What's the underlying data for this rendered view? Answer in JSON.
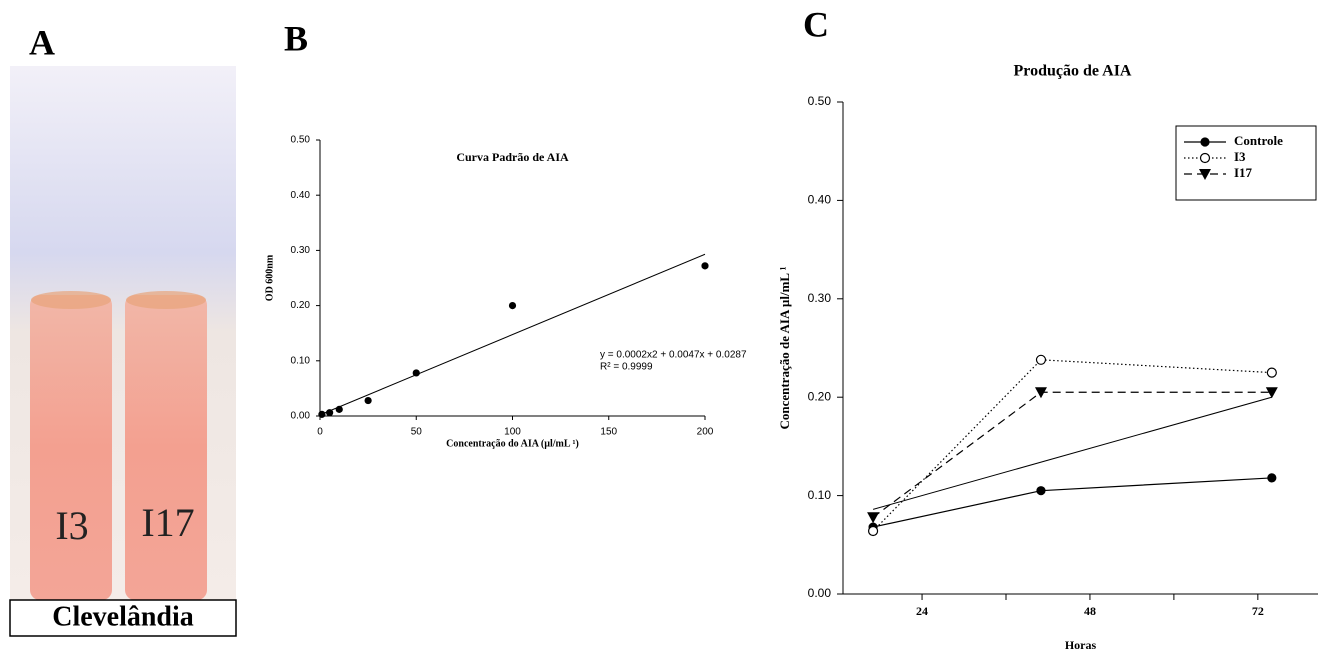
{
  "panel_labels": [
    "A",
    "B",
    "C"
  ],
  "photo": {
    "tube_labels": [
      "I3",
      "I17"
    ],
    "caption": "Clevelândia"
  },
  "chart_data": [
    {
      "type": "scatter",
      "title": "Curva Padrão de AIA",
      "xlabel": "Concentração do AIA (µl/mL ¹)",
      "ylabel": "OD 600nm",
      "x": [
        1,
        5,
        10,
        25,
        50,
        100,
        200
      ],
      "values": [
        0.003,
        0.006,
        0.012,
        0.028,
        0.078,
        0.2,
        0.272
      ],
      "color": "#000000",
      "trend_line": {
        "x": [
          0,
          200
        ],
        "y": [
          0.002,
          0.293
        ]
      },
      "annotations": [
        "y = 0.0002x2 + 0.0047x + 0.0287",
        "R² = 0.9999"
      ],
      "xlim": [
        0,
        200
      ],
      "ylim": [
        0,
        0.5
      ],
      "xticks": [
        0,
        50,
        100,
        150,
        200
      ],
      "yticks": [
        {
          "value": 0,
          "label": "0.00"
        },
        {
          "value": 0.1,
          "label": "0.10"
        },
        {
          "value": 0.2,
          "label": "0.20"
        },
        {
          "value": 0.3,
          "label": "0.30"
        },
        {
          "value": 0.4,
          "label": "0.40"
        },
        {
          "value": 0.5,
          "label": "0.50"
        }
      ]
    },
    {
      "type": "line",
      "title": "Produção de AIA",
      "xlabel": "Horas",
      "ylabel": "Concentração de AIA µl/mL ¹",
      "x": [
        17,
        41,
        74
      ],
      "series": [
        {
          "name": "Controle",
          "color": "#000000",
          "marker": "circle-filled",
          "dash": "solid",
          "values": [
            0.068,
            0.105,
            0.118
          ]
        },
        {
          "name": "I3",
          "color": "#000000",
          "marker": "circle-open",
          "dash": "dotted",
          "values": [
            0.064,
            0.238,
            0.225
          ]
        },
        {
          "name": "I17",
          "color": "#000000",
          "marker": "triangle-down",
          "dash": "dashed",
          "values": [
            0.078,
            0.205,
            0.205
          ]
        }
      ],
      "trend_line": {
        "x": [
          17,
          74
        ],
        "y": [
          0.086,
          0.2
        ]
      },
      "xlim": [
        12.7,
        80.6
      ],
      "ylim": [
        0,
        0.5
      ],
      "xticks": [
        24,
        48,
        72
      ],
      "xminorticks": [
        36,
        60
      ],
      "yticks": [
        {
          "value": 0,
          "label": "0.00"
        },
        {
          "value": 0.1,
          "label": "0.10"
        },
        {
          "value": 0.2,
          "label": "0.20"
        },
        {
          "value": 0.3,
          "label": "0.30"
        },
        {
          "value": 0.4,
          "label": "0.40"
        },
        {
          "value": 0.5,
          "label": "0.50"
        }
      ],
      "legend": "upper right"
    }
  ]
}
